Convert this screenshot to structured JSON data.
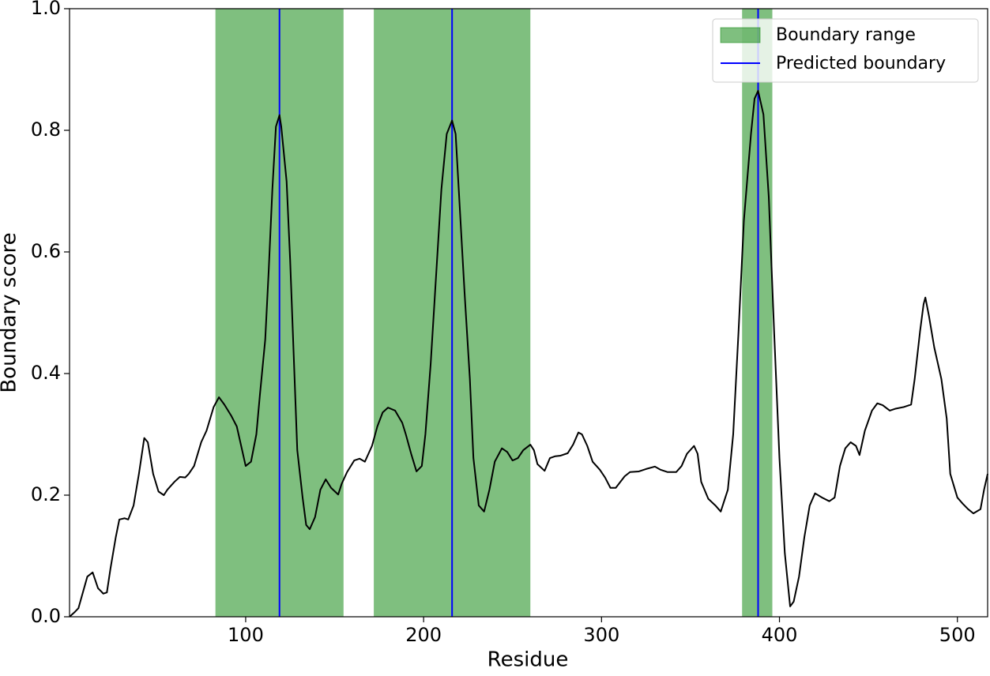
{
  "chart_data": {
    "type": "line",
    "xlabel": "Residue",
    "ylabel": "Boundary score",
    "x": [
      1,
      4,
      6,
      11,
      14,
      17,
      20,
      22,
      24,
      27,
      29,
      32,
      34,
      37,
      40,
      43,
      45,
      48,
      51,
      54,
      56,
      60,
      63,
      66,
      68,
      71,
      75,
      78,
      82,
      85,
      88,
      92,
      95,
      97,
      100,
      103,
      106,
      108,
      111,
      113,
      115,
      117,
      119,
      120,
      123,
      125,
      127,
      129,
      132,
      134,
      136,
      139,
      142,
      145,
      148,
      152,
      154,
      157,
      161,
      164,
      167,
      171,
      174,
      177,
      180,
      184,
      188,
      190,
      193,
      196,
      199,
      201,
      204,
      207,
      210,
      213,
      216,
      218,
      220,
      223,
      226,
      228,
      231,
      234,
      237,
      240,
      244,
      247,
      250,
      253,
      256,
      260,
      262,
      264,
      268,
      271,
      274,
      277,
      281,
      284,
      287,
      289,
      292,
      295,
      299,
      302,
      305,
      308,
      313,
      316,
      321,
      325,
      330,
      333,
      337,
      342,
      345,
      348,
      352,
      354,
      356,
      360,
      364,
      367,
      371,
      374,
      377,
      380,
      384,
      386,
      388,
      391,
      394,
      397,
      400,
      403,
      406,
      408,
      411,
      414,
      417,
      420,
      424,
      428,
      431,
      434,
      437,
      440,
      443,
      445,
      448,
      452,
      455,
      458,
      462,
      465,
      470,
      474,
      476,
      479,
      481,
      482,
      484,
      487,
      491,
      494,
      496,
      500,
      503,
      506,
      509,
      513,
      515,
      517
    ],
    "values": [
      0,
      0.008,
      0.014,
      0.066,
      0.073,
      0.047,
      0.038,
      0.04,
      0.079,
      0.131,
      0.16,
      0.162,
      0.16,
      0.183,
      0.235,
      0.294,
      0.287,
      0.235,
      0.206,
      0.2,
      0.209,
      0.222,
      0.23,
      0.229,
      0.235,
      0.248,
      0.287,
      0.306,
      0.345,
      0.361,
      0.349,
      0.33,
      0.313,
      0.287,
      0.248,
      0.255,
      0.3,
      0.365,
      0.456,
      0.573,
      0.703,
      0.806,
      0.825,
      0.806,
      0.716,
      0.586,
      0.43,
      0.274,
      0.196,
      0.151,
      0.144,
      0.164,
      0.209,
      0.226,
      0.212,
      0.201,
      0.219,
      0.238,
      0.257,
      0.26,
      0.255,
      0.281,
      0.313,
      0.336,
      0.344,
      0.339,
      0.319,
      0.3,
      0.268,
      0.239,
      0.248,
      0.3,
      0.417,
      0.56,
      0.703,
      0.794,
      0.816,
      0.794,
      0.69,
      0.534,
      0.391,
      0.261,
      0.183,
      0.173,
      0.209,
      0.255,
      0.277,
      0.271,
      0.257,
      0.261,
      0.274,
      0.283,
      0.274,
      0.251,
      0.24,
      0.261,
      0.264,
      0.265,
      0.269,
      0.283,
      0.303,
      0.3,
      0.281,
      0.255,
      0.242,
      0.229,
      0.212,
      0.212,
      0.231,
      0.238,
      0.239,
      0.243,
      0.247,
      0.242,
      0.238,
      0.238,
      0.248,
      0.268,
      0.281,
      0.268,
      0.222,
      0.194,
      0.183,
      0.173,
      0.209,
      0.3,
      0.469,
      0.651,
      0.794,
      0.852,
      0.865,
      0.826,
      0.69,
      0.469,
      0.261,
      0.105,
      0.017,
      0.025,
      0.066,
      0.131,
      0.183,
      0.203,
      0.196,
      0.19,
      0.196,
      0.248,
      0.277,
      0.287,
      0.281,
      0.266,
      0.306,
      0.339,
      0.351,
      0.348,
      0.339,
      0.342,
      0.345,
      0.349,
      0.391,
      0.469,
      0.514,
      0.525,
      0.495,
      0.443,
      0.391,
      0.326,
      0.235,
      0.196,
      0.186,
      0.177,
      0.17,
      0.177,
      0.209,
      0.235
    ],
    "color": "#000000",
    "spans": {
      "name": "Boundary range",
      "color": "#008000",
      "ranges": [
        [
          83,
          155
        ],
        [
          172,
          260
        ],
        [
          379,
          396
        ]
      ]
    },
    "boundaries": {
      "name": "Predicted boundary",
      "color": "#0000ff",
      "values": [
        119,
        216,
        388
      ]
    },
    "xlim": [
      1,
      517
    ],
    "xticks": [
      100,
      200,
      300,
      400,
      500
    ],
    "ylim": [
      0,
      1
    ],
    "yticks": [
      {
        "value": 0,
        "label": "0.0"
      },
      0.2,
      0.4,
      0.6,
      0.8,
      {
        "value": 1,
        "label": "1.0"
      }
    ],
    "grid": false,
    "legend": "upper right"
  }
}
